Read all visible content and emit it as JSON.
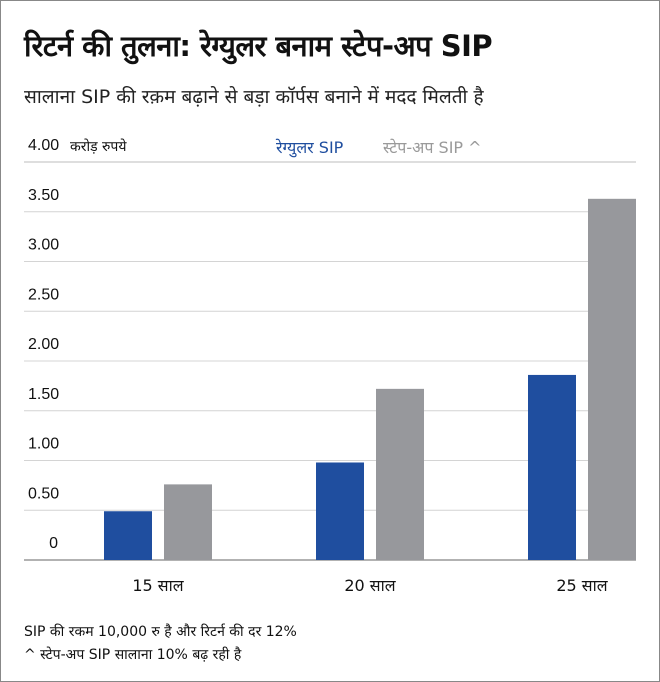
{
  "title": "रिटर्न की तुलना: रेग्युलर बनाम स्टेप-अप SIP",
  "subtitle": "सालाना SIP की रक़म बढ़ाने से बड़ा कॉर्पस बनाने में मदद मिलती है",
  "notes": [
    "SIP की रकम 10,000 रु है और रिटर्न की दर 12%",
    "^ स्टेप-अप SIP सालाना 10% बढ़ रही है"
  ],
  "chart_data": {
    "type": "bar",
    "title": "रिटर्न की तुलना: रेग्युलर बनाम स्टेप-अप SIP",
    "ylabel": "करोड़ रुपये",
    "ylim": [
      0,
      4
    ],
    "yticks": [
      "0",
      "0.50",
      "1.00",
      "1.50",
      "2.00",
      "2.50",
      "3.00",
      "3.50",
      "4.00"
    ],
    "categories": [
      "15 साल",
      "20 साल",
      "25 साल"
    ],
    "legend_position": "top",
    "grid": true,
    "series": [
      {
        "name": "रेग्युलर SIP",
        "color": "#1f4e9f",
        "values": [
          0.49,
          0.98,
          1.86
        ]
      },
      {
        "name": "स्टेप-अप SIP ^",
        "color": "#97989c",
        "values": [
          0.76,
          1.72,
          3.63
        ]
      }
    ]
  }
}
